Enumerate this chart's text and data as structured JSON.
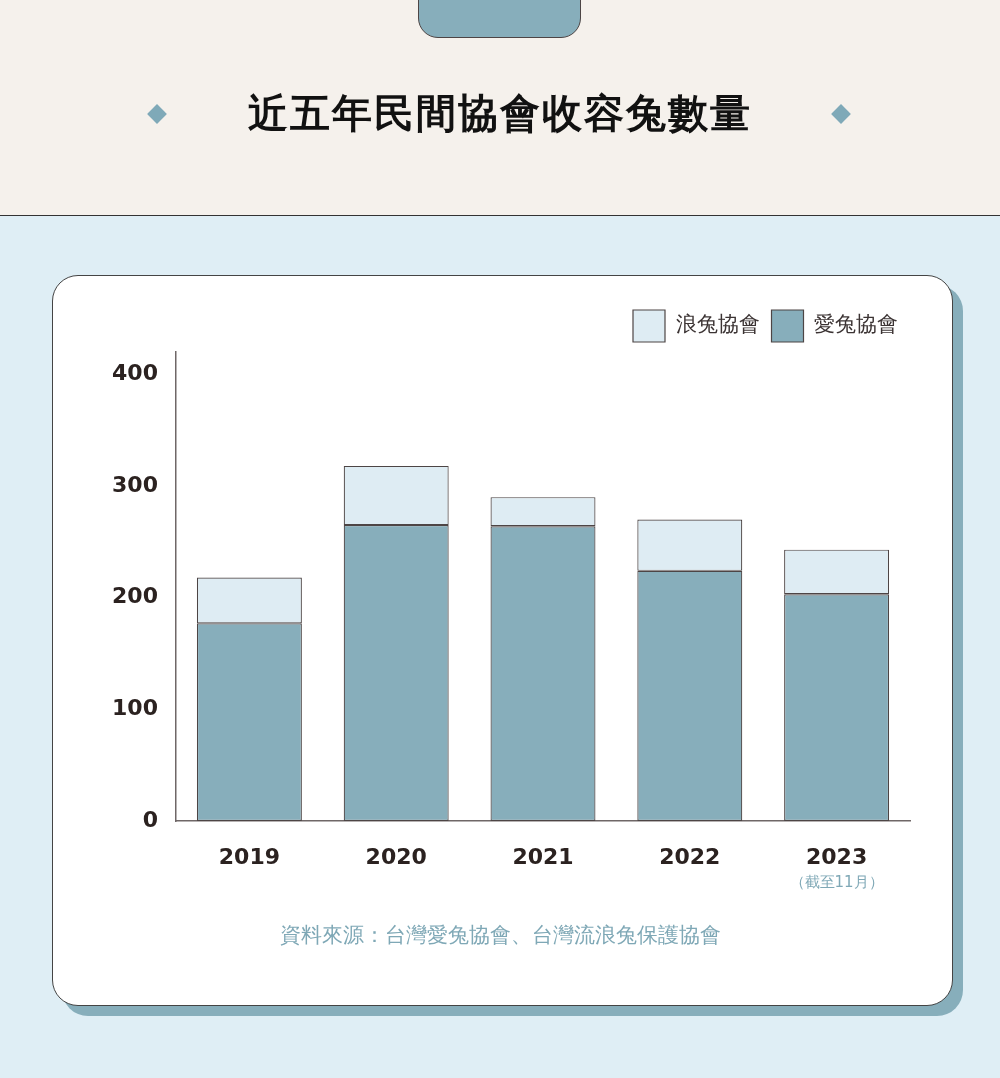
{
  "chart_data": {
    "type": "bar",
    "title": "近五年民間協會收容兔數量",
    "categories": [
      "2019",
      "2020",
      "2021",
      "2022",
      "2023"
    ],
    "series": [
      {
        "name": "愛兔協會",
        "color": "#87aebb",
        "values": [
          177,
          265,
          264,
          224,
          203
        ]
      },
      {
        "name": "浪兔協會",
        "color": "#deecf3",
        "values": [
          41,
          53,
          26,
          46,
          40
        ]
      }
    ],
    "stacked": true,
    "ylim": [
      0,
      420
    ],
    "yticks": [
      0,
      100,
      200,
      300,
      400
    ],
    "grid": false,
    "legend": "top right",
    "annotations": [
      "（截至11月）",
      "資料來源：台灣愛兔協會、台灣流浪兔保護協會"
    ]
  }
}
